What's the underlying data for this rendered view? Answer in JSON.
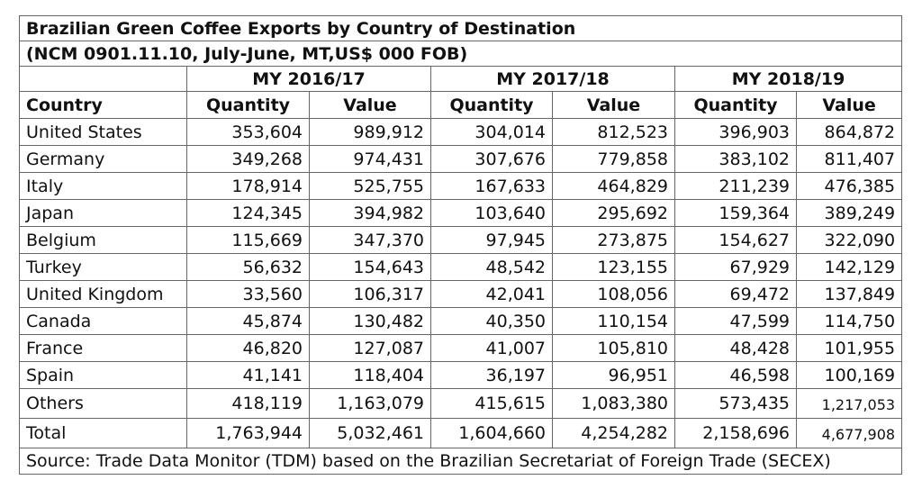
{
  "title": "Brazilian Green Coffee Exports by Country of Destination",
  "subtitle": "(NCM 0901.11.10, July-June, MT,US$ 000 FOB)",
  "years": [
    "MY 2016/17",
    "MY 2017/18",
    "MY 2018/19"
  ],
  "headers": [
    "Country",
    "Quantity",
    "Value",
    "Quantity",
    "Value",
    "Quantity",
    "Value"
  ],
  "rows": [
    [
      "United States",
      "353,604",
      "989,912",
      "304,014",
      "812,523",
      "396,903",
      "864,872"
    ],
    [
      "Germany",
      "349,268",
      "974,431",
      "307,676",
      "779,858",
      "383,102",
      "811,407"
    ],
    [
      "Italy",
      "178,914",
      "525,755",
      "167,633",
      "464,829",
      "211,239",
      "476,385"
    ],
    [
      "Japan",
      "124,345",
      "394,982",
      "103,640",
      "295,692",
      "159,364",
      "389,249"
    ],
    [
      "Belgium",
      "115,669",
      "347,370",
      "97,945",
      "273,875",
      "154,627",
      "322,090"
    ],
    [
      "Turkey",
      "56,632",
      "154,643",
      "48,542",
      "123,155",
      "67,929",
      "142,129"
    ],
    [
      "United Kingdom",
      "33,560",
      "106,317",
      "42,041",
      "108,056",
      "69,472",
      "137,849"
    ],
    [
      "Canada",
      "45,874",
      "130,482",
      "40,350",
      "110,154",
      "47,599",
      "114,750"
    ],
    [
      "France",
      "46,820",
      "127,087",
      "41,007",
      "105,810",
      "48,428",
      "101,955"
    ],
    [
      "Spain",
      "41,141",
      "118,404",
      "36,197",
      "96,951",
      "46,598",
      "100,169"
    ],
    [
      "Others",
      "418,119",
      "1,163,079",
      "415,615",
      "1,083,380",
      "573,435",
      "1,217,053"
    ],
    [
      "Total",
      "1,763,944",
      "5,032,461",
      "1,604,660",
      "4,254,282",
      "2,158,696",
      "4,677,908"
    ]
  ],
  "source": "Source: Trade Data Monitor (TDM) based on the Brazilian Secretariat of Foreign Trade (SECEX)"
}
